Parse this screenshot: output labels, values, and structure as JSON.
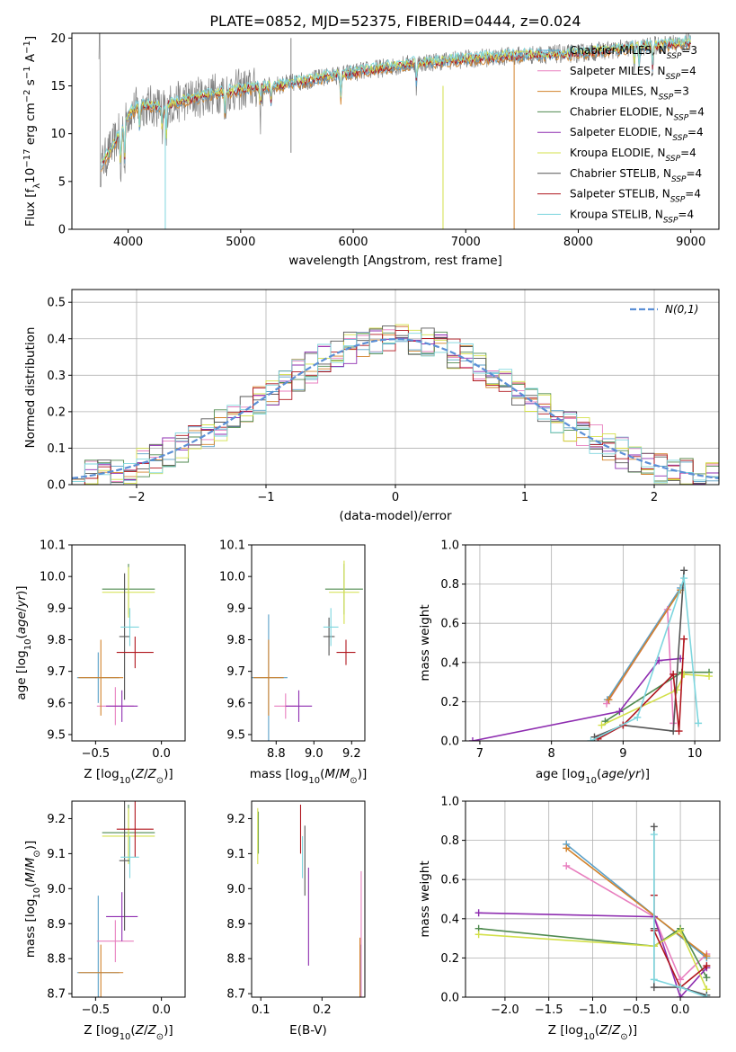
{
  "title": "PLATE=0852, MJD=52375, FIBERID=0444, z=0.024",
  "colors": {
    "Chabrier MILES": "#5aa0c8",
    "Salpeter MILES": "#e87fbf",
    "Kroupa MILES": "#d2822b",
    "Chabrier ELODIE": "#4f8a4f",
    "Salpeter ELODIE": "#8e2db0",
    "Kroupa ELODIE": "#d3e04a",
    "Chabrier STELIB": "#555555",
    "Salpeter STELIB": "#b0161e",
    "Kroupa STELIB": "#7ed6de",
    "data": "#808080",
    "gauss": "#5b8fd6"
  },
  "chart_data": [
    {
      "type": "line",
      "id": "spectrum",
      "xlabel": "wavelength [Angstrom, rest frame]",
      "ylabel": "Flux [f_λ10^-17 erg cm^-2 s^-1 A^-1]",
      "xlim": [
        3500,
        9250
      ],
      "ylim": [
        0,
        20.5
      ],
      "xticks": [
        4000,
        5000,
        6000,
        7000,
        8000,
        9000
      ],
      "yticks": [
        0,
        5,
        10,
        15,
        20
      ],
      "legend_position": "top-right",
      "legend": [
        {
          "model": "Chabrier MILES",
          "nssp": "3"
        },
        {
          "model": "Salpeter MILES",
          "nssp": "4"
        },
        {
          "model": "Kroupa MILES",
          "nssp": "3"
        },
        {
          "model": "Chabrier ELODIE",
          "nssp": "4"
        },
        {
          "model": "Salpeter ELODIE",
          "nssp": "4"
        },
        {
          "model": "Kroupa ELODIE",
          "nssp": "4"
        },
        {
          "model": "Chabrier STELIB",
          "nssp": "4"
        },
        {
          "model": "Salpeter STELIB",
          "nssp": "4"
        },
        {
          "model": "Kroupa STELIB",
          "nssp": "4"
        }
      ],
      "continuum": [
        [
          3750,
          6.5
        ],
        [
          3900,
          9.5
        ],
        [
          4000,
          12.0
        ],
        [
          4100,
          13.0
        ],
        [
          4300,
          12.8
        ],
        [
          4500,
          13.5
        ],
        [
          4800,
          14.3
        ],
        [
          5000,
          14.6
        ],
        [
          5300,
          15.0
        ],
        [
          5600,
          15.6
        ],
        [
          6000,
          16.4
        ],
        [
          6500,
          17.3
        ],
        [
          7000,
          17.8
        ],
        [
          7500,
          18.2
        ],
        [
          8000,
          18.4
        ],
        [
          8500,
          19.0
        ],
        [
          9000,
          19.6
        ]
      ]
    },
    {
      "type": "line",
      "id": "residuals",
      "xlabel": "(data-model)/error",
      "ylabel": "Normed distribution",
      "xlim": [
        -2.5,
        2.5
      ],
      "ylim": [
        0,
        0.535
      ],
      "xticks": [
        -2,
        -1,
        0,
        1,
        2
      ],
      "yticks": [
        0.0,
        0.1,
        0.2,
        0.3,
        0.4,
        0.5
      ],
      "legend_position": "top-right",
      "legend": [
        "N(0,1)"
      ],
      "bin_width": 0.1,
      "grid": true
    },
    {
      "type": "scatter",
      "id": "age-vs-Z",
      "xlabel": "Z [log10(Z/Z⊙)]",
      "ylabel": "age [log10(age/yr)]",
      "xlim": [
        -0.68,
        0.18
      ],
      "ylim": [
        9.48,
        10.1
      ],
      "xticks": [
        -0.5,
        0.0
      ],
      "yticks": [
        9.5,
        9.6,
        9.7,
        9.8,
        9.9,
        10.0,
        10.1
      ],
      "points": [
        {
          "model": "Chabrier MILES",
          "x": -0.48,
          "y": 9.68,
          "xerr": 0.16,
          "yerr": 0.08
        },
        {
          "model": "Salpeter MILES",
          "x": -0.35,
          "y": 9.59,
          "xerr": 0.14,
          "yerr": 0.06
        },
        {
          "model": "Kroupa MILES",
          "x": -0.46,
          "y": 9.68,
          "xerr": 0.17,
          "yerr": 0.12
        },
        {
          "model": "Chabrier ELODIE",
          "x": -0.25,
          "y": 9.96,
          "xerr": 0.2,
          "yerr": 0.08
        },
        {
          "model": "Salpeter ELODIE",
          "x": -0.3,
          "y": 9.59,
          "xerr": 0.12,
          "yerr": 0.05
        },
        {
          "model": "Kroupa ELODIE",
          "x": -0.25,
          "y": 9.95,
          "xerr": 0.2,
          "yerr": 0.08
        },
        {
          "model": "Chabrier STELIB",
          "x": -0.28,
          "y": 9.81,
          "xerr": 0.04,
          "yerr": 0.2
        },
        {
          "model": "Salpeter STELIB",
          "x": -0.2,
          "y": 9.76,
          "xerr": 0.14,
          "yerr": 0.05
        },
        {
          "model": "Kroupa STELIB",
          "x": -0.24,
          "y": 9.84,
          "xerr": 0.07,
          "yerr": 0.06
        }
      ]
    },
    {
      "type": "scatter",
      "id": "age-vs-mass",
      "xlabel": "mass [log10(M/M⊙)]",
      "ylabel": "",
      "xlim": [
        8.67,
        9.27
      ],
      "ylim": [
        9.48,
        10.1
      ],
      "xticks": [
        8.8,
        9.0,
        9.2
      ],
      "yticks": [
        9.5,
        9.6,
        9.7,
        9.8,
        9.9,
        10.0,
        10.1
      ],
      "points": [
        {
          "model": "Chabrier MILES",
          "x": 8.76,
          "y": 9.68,
          "xerr": 0.1,
          "yerr": 0.2
        },
        {
          "model": "Salpeter MILES",
          "x": 8.85,
          "y": 9.59,
          "xerr": 0.06,
          "yerr": 0.04
        },
        {
          "model": "Kroupa MILES",
          "x": 8.76,
          "y": 9.68,
          "xerr": 0.08,
          "yerr": 0.12
        },
        {
          "model": "Chabrier ELODIE",
          "x": 9.16,
          "y": 9.96,
          "xerr": 0.1,
          "yerr": 0.08
        },
        {
          "model": "Salpeter ELODIE",
          "x": 8.92,
          "y": 9.59,
          "xerr": 0.07,
          "yerr": 0.05
        },
        {
          "model": "Kroupa ELODIE",
          "x": 9.16,
          "y": 9.95,
          "xerr": 0.08,
          "yerr": 0.1
        },
        {
          "model": "Chabrier STELIB",
          "x": 9.08,
          "y": 9.81,
          "xerr": 0.03,
          "yerr": 0.06
        },
        {
          "model": "Salpeter STELIB",
          "x": 9.17,
          "y": 9.76,
          "xerr": 0.05,
          "yerr": 0.04
        },
        {
          "model": "Kroupa STELIB",
          "x": 9.09,
          "y": 9.84,
          "xerr": 0.04,
          "yerr": 0.06
        }
      ]
    },
    {
      "type": "line",
      "id": "mass-weight-vs-age",
      "xlabel": "age [log10(age/yr)]",
      "ylabel": "mass weight",
      "xlim": [
        6.8,
        10.35
      ],
      "ylim": [
        0,
        1.0
      ],
      "xticks": [
        7,
        8,
        9,
        10
      ],
      "yticks": [
        0.0,
        0.2,
        0.4,
        0.6,
        0.8,
        1.0
      ],
      "grid": true,
      "series": [
        {
          "model": "Chabrier MILES",
          "x": [
            8.78,
            9.8
          ],
          "y": [
            0.21,
            0.78
          ]
        },
        {
          "model": "Salpeter MILES",
          "x": [
            8.77,
            9.62,
            9.7
          ],
          "y": [
            0.19,
            0.67,
            0.09
          ]
        },
        {
          "model": "Kroupa MILES",
          "x": [
            8.8,
            9.8
          ],
          "y": [
            0.21,
            0.77
          ]
        },
        {
          "model": "Chabrier ELODIE",
          "x": [
            8.75,
            9.82,
            10.2
          ],
          "y": [
            0.1,
            0.35,
            0.35
          ]
        },
        {
          "model": "Salpeter ELODIE",
          "x": [
            6.9,
            8.95,
            9.5,
            9.8
          ],
          "y": [
            0.0,
            0.15,
            0.41,
            0.42
          ]
        },
        {
          "model": "Kroupa ELODIE",
          "x": [
            8.7,
            9.75,
            9.85,
            10.2
          ],
          "y": [
            0.08,
            0.26,
            0.34,
            0.33
          ]
        },
        {
          "model": "Chabrier STELIB",
          "x": [
            8.6,
            9.0,
            9.7,
            9.85
          ],
          "y": [
            0.02,
            0.08,
            0.05,
            0.87
          ]
        },
        {
          "model": "Salpeter STELIB",
          "x": [
            8.65,
            9.0,
            9.7,
            9.78,
            9.85
          ],
          "y": [
            0.01,
            0.08,
            0.34,
            0.05,
            0.52
          ]
        },
        {
          "model": "Kroupa STELIB",
          "x": [
            8.55,
            9.2,
            9.85,
            10.05
          ],
          "y": [
            0.0,
            0.12,
            0.83,
            0.09
          ]
        }
      ]
    },
    {
      "type": "scatter",
      "id": "mass-vs-Z",
      "xlabel": "Z [log10(Z/Z⊙)]",
      "ylabel": "mass [log10(M/M⊙)]",
      "xlim": [
        -0.68,
        0.18
      ],
      "ylim": [
        8.69,
        9.25
      ],
      "xticks": [
        -0.5,
        0.0
      ],
      "yticks": [
        8.7,
        8.8,
        8.9,
        9.0,
        9.1,
        9.2
      ],
      "points": [
        {
          "model": "Chabrier MILES",
          "x": -0.48,
          "y": 8.76,
          "xerr": 0.16,
          "yerr": 0.22
        },
        {
          "model": "Salpeter MILES",
          "x": -0.35,
          "y": 8.85,
          "xerr": 0.14,
          "yerr": 0.06
        },
        {
          "model": "Kroupa MILES",
          "x": -0.46,
          "y": 8.76,
          "xerr": 0.17,
          "yerr": 0.08
        },
        {
          "model": "Chabrier ELODIE",
          "x": -0.25,
          "y": 9.16,
          "xerr": 0.2,
          "yerr": 0.08
        },
        {
          "model": "Salpeter ELODIE",
          "x": -0.3,
          "y": 8.92,
          "xerr": 0.12,
          "yerr": 0.07
        },
        {
          "model": "Kroupa ELODIE",
          "x": -0.25,
          "y": 9.15,
          "xerr": 0.2,
          "yerr": 0.08
        },
        {
          "model": "Chabrier STELIB",
          "x": -0.28,
          "y": 9.08,
          "xerr": 0.04,
          "yerr": 0.2
        },
        {
          "model": "Salpeter STELIB",
          "x": -0.2,
          "y": 9.17,
          "xerr": 0.14,
          "yerr": 0.08
        },
        {
          "model": "Kroupa STELIB",
          "x": -0.24,
          "y": 9.09,
          "xerr": 0.07,
          "yerr": 0.06
        }
      ]
    },
    {
      "type": "scatter",
      "id": "mass-vs-ebv",
      "xlabel": "E(B-V)",
      "ylabel": "",
      "xlim": [
        0.085,
        0.27
      ],
      "ylim": [
        8.69,
        9.25
      ],
      "xticks": [
        0.1,
        0.2
      ],
      "yticks": [
        8.7,
        8.8,
        8.9,
        9.0,
        9.1,
        9.2
      ],
      "points": [
        {
          "model": "Chabrier MILES",
          "x": 0.263,
          "y": 8.76,
          "yerr": 0.08
        },
        {
          "model": "Salpeter MILES",
          "x": 0.264,
          "y": 8.85,
          "yerr": 0.2
        },
        {
          "model": "Kroupa MILES",
          "x": 0.262,
          "y": 8.76,
          "yerr": 0.1
        },
        {
          "model": "Chabrier ELODIE",
          "x": 0.096,
          "y": 9.16,
          "yerr": 0.06
        },
        {
          "model": "Salpeter ELODIE",
          "x": 0.178,
          "y": 8.92,
          "yerr": 0.14
        },
        {
          "model": "Kroupa ELODIE",
          "x": 0.095,
          "y": 9.15,
          "yerr": 0.08
        },
        {
          "model": "Chabrier STELIB",
          "x": 0.172,
          "y": 9.08,
          "yerr": 0.1
        },
        {
          "model": "Salpeter STELIB",
          "x": 0.165,
          "y": 9.17,
          "yerr": 0.07
        },
        {
          "model": "Kroupa STELIB",
          "x": 0.168,
          "y": 9.09,
          "yerr": 0.06
        }
      ]
    },
    {
      "type": "line",
      "id": "mass-weight-vs-Z",
      "xlabel": "Z [log10(Z/Z⊙)]",
      "ylabel": "mass weight",
      "xlim": [
        -2.45,
        0.45
      ],
      "ylim": [
        0,
        1.0
      ],
      "xticks": [
        -2.0,
        -1.5,
        -1.0,
        -0.5,
        0.0
      ],
      "yticks": [
        0.0,
        0.2,
        0.4,
        0.6,
        0.8,
        1.0
      ],
      "grid": true,
      "series": [
        {
          "model": "Chabrier MILES",
          "x": [
            -1.3,
            0.3
          ],
          "y": [
            0.78,
            0.2
          ]
        },
        {
          "model": "Salpeter MILES",
          "x": [
            -1.3,
            -0.3,
            0.0,
            0.3
          ],
          "y": [
            0.67,
            0.41,
            0.09,
            0.22
          ]
        },
        {
          "model": "Kroupa MILES",
          "x": [
            -1.3,
            0.3
          ],
          "y": [
            0.76,
            0.21
          ]
        },
        {
          "model": "Chabrier ELODIE",
          "x": [
            -2.3,
            -0.3,
            0.0,
            0.3
          ],
          "y": [
            0.35,
            0.26,
            0.35,
            0.1
          ]
        },
        {
          "model": "Salpeter ELODIE",
          "x": [
            -2.3,
            -0.3,
            0.0,
            0.3
          ],
          "y": [
            0.43,
            0.41,
            0.0,
            0.15
          ]
        },
        {
          "model": "Kroupa ELODIE",
          "x": [
            -2.3,
            -0.3,
            0.0,
            0.3
          ],
          "y": [
            0.32,
            0.26,
            0.34,
            0.04
          ]
        },
        {
          "model": "Chabrier STELIB",
          "x": [
            -0.3,
            -0.3,
            -0.3,
            0.0,
            0.3
          ],
          "y": [
            0.87,
            0.35,
            0.05,
            0.05,
            0.01
          ]
        },
        {
          "model": "Salpeter STELIB",
          "x": [
            -0.3,
            -0.3,
            0.0,
            0.3
          ],
          "y": [
            0.52,
            0.34,
            0.05,
            0.16
          ]
        },
        {
          "model": "Kroupa STELIB",
          "x": [
            -0.3,
            -0.3,
            0.0,
            0.3
          ],
          "y": [
            0.83,
            0.09,
            0.05,
            0.0
          ]
        }
      ]
    }
  ]
}
